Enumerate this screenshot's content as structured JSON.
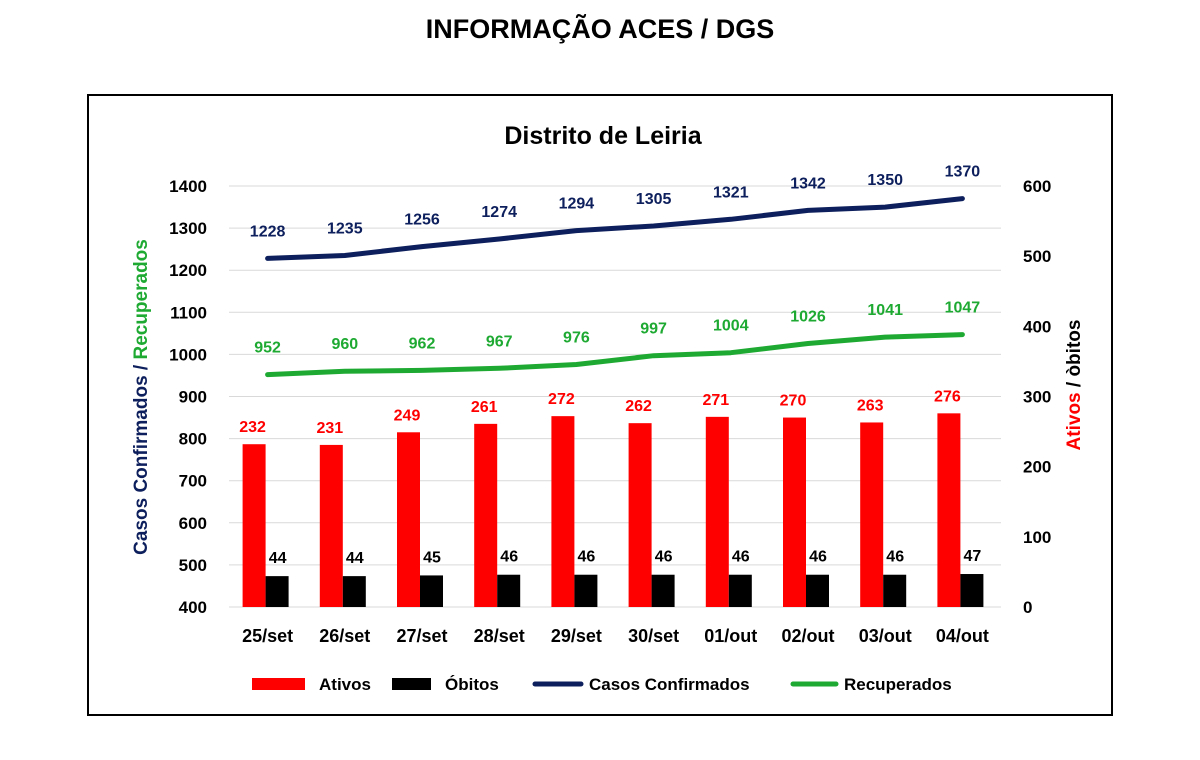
{
  "page": {
    "header": "INFORMAÇÃO ACES / DGS"
  },
  "colors": {
    "ativos": "#ff0000",
    "obitos": "#000000",
    "confirmados": "#0d1f5c",
    "recuperados": "#1eaa32",
    "grid": "#d9d9d9"
  },
  "chart_data": {
    "type": "bar",
    "title": "Distrito de Leiria",
    "categories": [
      "25/set",
      "26/set",
      "27/set",
      "28/set",
      "29/set",
      "30/set",
      "01/out",
      "02/out",
      "03/out",
      "04/out"
    ],
    "ylabel_left_part1": "Casos Confirmados",
    "ylabel_left_sep": " / ",
    "ylabel_left_part2": "Recuperados",
    "ylabel_right_part1": "Ativos",
    "ylabel_right_sep": " / ",
    "ylabel_right_part2": "òbitos",
    "ylim_left": [
      400,
      1400
    ],
    "yticks_left": [
      400,
      500,
      600,
      700,
      800,
      900,
      1000,
      1100,
      1200,
      1300,
      1400
    ],
    "ylim_right": [
      0,
      600
    ],
    "yticks_right": [
      0,
      100,
      200,
      300,
      400,
      500,
      600
    ],
    "grid": true,
    "legend_position": "bottom",
    "series": [
      {
        "name": "Ativos",
        "type": "bar",
        "axis": "right",
        "values": [
          232,
          231,
          249,
          261,
          272,
          262,
          271,
          270,
          263,
          276
        ]
      },
      {
        "name": "Óbitos",
        "type": "bar",
        "axis": "right",
        "values": [
          44,
          44,
          45,
          46,
          46,
          46,
          46,
          46,
          46,
          47
        ]
      },
      {
        "name": "Casos Confirmados",
        "type": "line",
        "axis": "left",
        "values": [
          1228,
          1235,
          1256,
          1274,
          1294,
          1305,
          1321,
          1342,
          1350,
          1370
        ]
      },
      {
        "name": "Recuperados",
        "type": "line",
        "axis": "left",
        "values": [
          952,
          960,
          962,
          967,
          976,
          997,
          1004,
          1026,
          1041,
          1047
        ]
      }
    ]
  }
}
